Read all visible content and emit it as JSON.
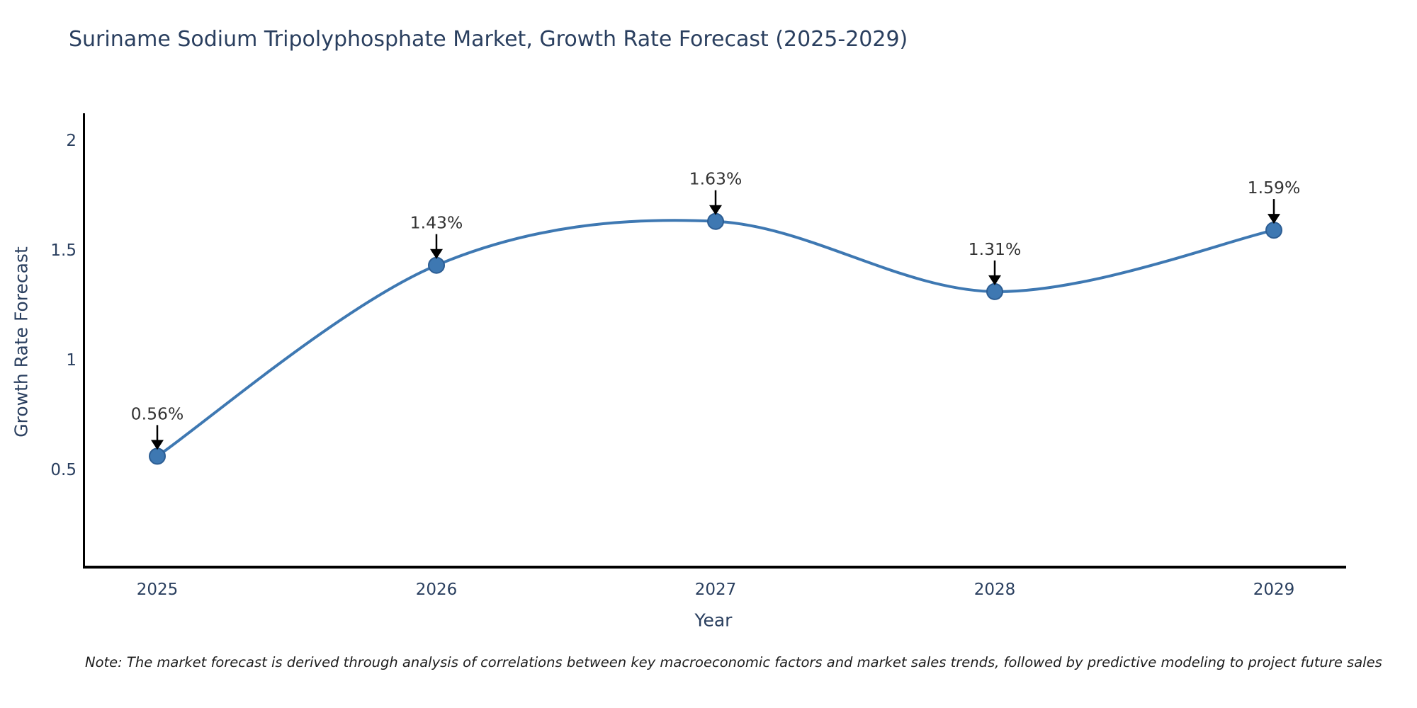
{
  "chart": {
    "note": "Note: The market forecast is derived through analysis of correlations between key macroeconomic factors and market sales trends, followed by predictive modeling to project future sales",
    "colors": {
      "line": "#3e78b2",
      "marker_fill": "#3e78b2",
      "marker_edge": "#2d5e94",
      "axis_line": "#000000",
      "tick_text": "#2a3f5f",
      "annotation_text": "#333333",
      "arrow": "#000000",
      "title_text": "#2a3f5f"
    }
  },
  "chart_data": {
    "type": "line",
    "title": "Suriname Sodium Tripolyphosphate Market, Growth Rate Forecast (2025-2029)",
    "xlabel": "Year",
    "ylabel": "Growth Rate Forecast",
    "x": [
      2025,
      2026,
      2027,
      2028,
      2029
    ],
    "values": [
      0.56,
      1.43,
      1.63,
      1.31,
      1.59
    ],
    "point_labels": [
      "0.56%",
      "1.43%",
      "1.63%",
      "1.31%",
      "1.59%"
    ],
    "xticklabels": [
      "2025",
      "2026",
      "2027",
      "2028",
      "2029"
    ],
    "yticks": [
      0.5,
      1,
      1.5,
      2
    ],
    "ylim": [
      0.05,
      2.12
    ],
    "grid": false,
    "line_shape": "spline",
    "markers": true,
    "annotation_style": "value-label-with-down-arrow",
    "legend": "none"
  }
}
